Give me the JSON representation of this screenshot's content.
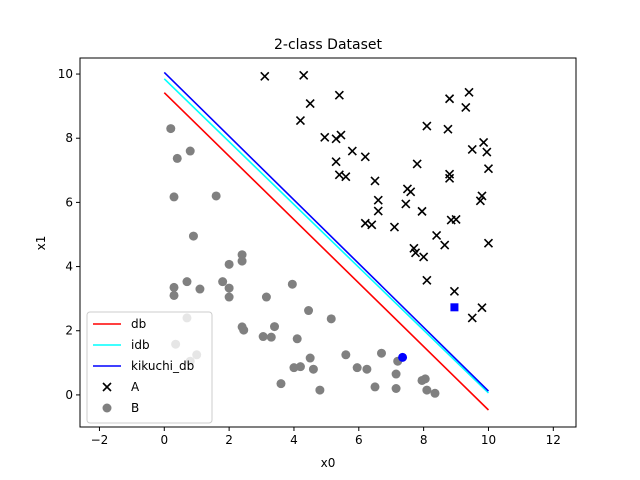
{
  "chart_data": {
    "type": "scatter",
    "title": "2-class Dataset",
    "xlabel": "x0",
    "ylabel": "x1",
    "xlim": [
      -2.6,
      12.7
    ],
    "ylim": [
      -1.0,
      10.5
    ],
    "xticks": [
      -2,
      0,
      2,
      4,
      6,
      8,
      10,
      12
    ],
    "yticks": [
      0,
      2,
      4,
      6,
      8,
      10
    ],
    "grid": false,
    "legend_position": "lower-left",
    "lines": [
      {
        "name": "db",
        "color": "#ff0000",
        "x": [
          0,
          10
        ],
        "y": [
          9.42,
          -0.47
        ]
      },
      {
        "name": "idb",
        "color": "#00ffff",
        "x": [
          0,
          10
        ],
        "y": [
          9.85,
          0.06
        ]
      },
      {
        "name": "kikuchi_db",
        "color": "#0000ff",
        "x": [
          0,
          10
        ],
        "y": [
          10.05,
          0.12
        ]
      }
    ],
    "series": [
      {
        "name": "A",
        "marker": "x",
        "color": "#000000",
        "points": [
          [
            3.1,
            9.93
          ],
          [
            4.3,
            9.96
          ],
          [
            9.4,
            9.43
          ],
          [
            5.4,
            9.34
          ],
          [
            8.8,
            9.23
          ],
          [
            4.5,
            9.08
          ],
          [
            9.3,
            8.96
          ],
          [
            4.2,
            8.55
          ],
          [
            8.1,
            8.38
          ],
          [
            8.75,
            8.28
          ],
          [
            5.45,
            8.1
          ],
          [
            4.95,
            8.03
          ],
          [
            5.3,
            7.98
          ],
          [
            9.85,
            7.87
          ],
          [
            5.8,
            7.6
          ],
          [
            9.5,
            7.65
          ],
          [
            9.95,
            7.57
          ],
          [
            6.2,
            7.42
          ],
          [
            5.3,
            7.27
          ],
          [
            7.8,
            7.2
          ],
          [
            10.0,
            7.05
          ],
          [
            5.4,
            6.86
          ],
          [
            5.6,
            6.8
          ],
          [
            8.8,
            6.88
          ],
          [
            8.8,
            6.75
          ],
          [
            6.5,
            6.67
          ],
          [
            7.5,
            6.42
          ],
          [
            7.6,
            6.33
          ],
          [
            9.8,
            6.2
          ],
          [
            9.75,
            6.05
          ],
          [
            6.6,
            6.07
          ],
          [
            7.45,
            5.95
          ],
          [
            6.6,
            5.73
          ],
          [
            7.95,
            5.72
          ],
          [
            9.0,
            5.47
          ],
          [
            8.85,
            5.45
          ],
          [
            6.2,
            5.35
          ],
          [
            6.4,
            5.3
          ],
          [
            7.1,
            5.23
          ],
          [
            8.4,
            4.97
          ],
          [
            8.65,
            4.67
          ],
          [
            10.0,
            4.73
          ],
          [
            7.7,
            4.57
          ],
          [
            7.75,
            4.43
          ],
          [
            8.0,
            4.3
          ],
          [
            8.1,
            3.57
          ],
          [
            8.95,
            3.23
          ],
          [
            9.8,
            2.72
          ],
          [
            9.5,
            2.4
          ]
        ]
      },
      {
        "name": "B",
        "marker": "o",
        "color": "#808080",
        "points": [
          [
            0.2,
            8.3
          ],
          [
            0.8,
            7.6
          ],
          [
            0.4,
            7.37
          ],
          [
            0.3,
            6.17
          ],
          [
            1.6,
            6.2
          ],
          [
            0.9,
            4.95
          ],
          [
            2.4,
            4.37
          ],
          [
            2.4,
            4.17
          ],
          [
            2.0,
            4.07
          ],
          [
            0.7,
            3.53
          ],
          [
            1.8,
            3.53
          ],
          [
            3.95,
            3.45
          ],
          [
            0.3,
            3.35
          ],
          [
            2.0,
            3.33
          ],
          [
            1.1,
            3.3
          ],
          [
            0.3,
            3.1
          ],
          [
            2.0,
            3.05
          ],
          [
            3.15,
            3.05
          ],
          [
            4.45,
            2.63
          ],
          [
            0.7,
            2.4
          ],
          [
            5.15,
            2.37
          ],
          [
            2.4,
            2.12
          ],
          [
            3.4,
            2.13
          ],
          [
            2.45,
            2.02
          ],
          [
            3.05,
            1.82
          ],
          [
            3.3,
            1.8
          ],
          [
            4.1,
            1.75
          ],
          [
            0.35,
            1.58
          ],
          [
            5.6,
            1.25
          ],
          [
            1.0,
            1.25
          ],
          [
            6.7,
            1.3
          ],
          [
            4.5,
            1.15
          ],
          [
            0.8,
            1.05
          ],
          [
            7.2,
            1.05
          ],
          [
            4.0,
            0.85
          ],
          [
            4.2,
            0.88
          ],
          [
            5.95,
            0.85
          ],
          [
            6.25,
            0.8
          ],
          [
            4.6,
            0.8
          ],
          [
            7.15,
            0.65
          ],
          [
            7.95,
            0.45
          ],
          [
            8.05,
            0.5
          ],
          [
            3.6,
            0.35
          ],
          [
            6.5,
            0.25
          ],
          [
            7.15,
            0.2
          ],
          [
            4.8,
            0.15
          ],
          [
            8.1,
            0.15
          ],
          [
            8.35,
            0.05
          ]
        ]
      },
      {
        "name": "",
        "marker": "o",
        "color": "#0000ff",
        "points": [
          [
            7.35,
            1.17
          ]
        ]
      },
      {
        "name": "",
        "marker": "s",
        "color": "#0000ff",
        "points": [
          [
            8.95,
            2.73
          ]
        ]
      }
    ]
  }
}
